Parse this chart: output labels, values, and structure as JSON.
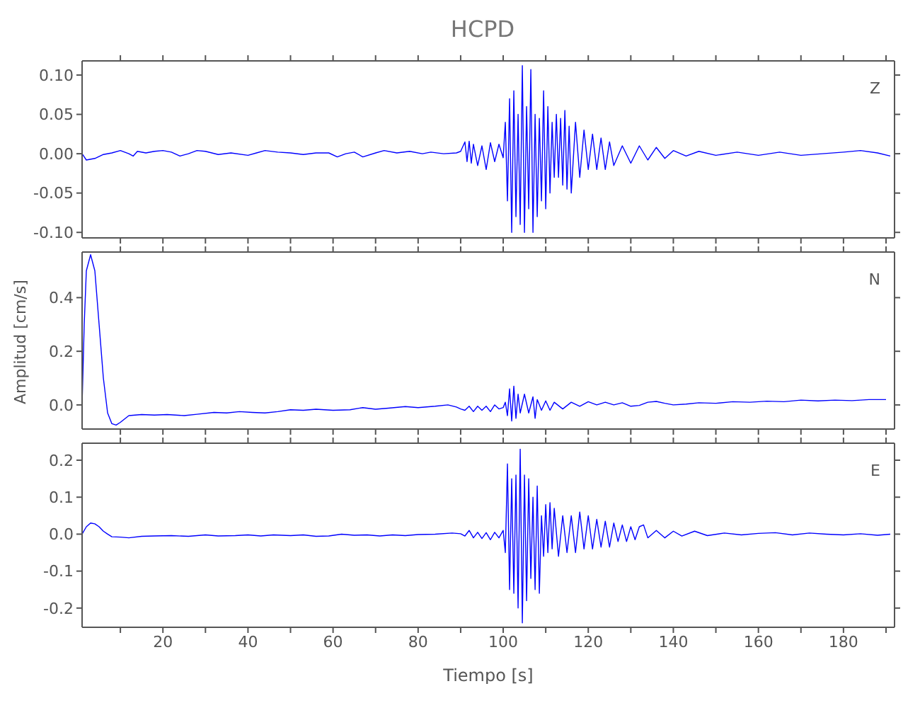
{
  "chart_data": [
    {
      "type": "line",
      "title": "HCPD",
      "annotations": [
        "Z"
      ],
      "color": "#0000ff",
      "tick_labels": "y",
      "xlim": [
        1,
        192
      ],
      "xticks": [
        {
          "value": 10,
          "label": null
        },
        {
          "value": 20,
          "label": null
        },
        {
          "value": 30,
          "label": null
        },
        {
          "value": 40,
          "label": null
        },
        {
          "value": 50,
          "label": null
        },
        {
          "value": 60,
          "label": null
        },
        {
          "value": 70,
          "label": null
        },
        {
          "value": 80,
          "label": null
        },
        {
          "value": 90,
          "label": null
        },
        {
          "value": 100,
          "label": null
        },
        {
          "value": 110,
          "label": null
        },
        {
          "value": 120,
          "label": null
        },
        {
          "value": 130,
          "label": null
        },
        {
          "value": 140,
          "label": null
        },
        {
          "value": 150,
          "label": null
        },
        {
          "value": 160,
          "label": null
        },
        {
          "value": 170,
          "label": null
        },
        {
          "value": 180,
          "label": null
        },
        {
          "value": 190,
          "label": null
        }
      ],
      "ylim": [
        -0.107,
        0.118
      ],
      "yticks": [
        {
          "value": -0.1,
          "label": "-0.10"
        },
        {
          "value": -0.05,
          "label": "-0.05"
        },
        {
          "value": 0,
          "label": "0.00"
        },
        {
          "value": 0.05,
          "label": "0.05"
        },
        {
          "value": 0.1,
          "label": "0.10"
        }
      ],
      "x": [
        1,
        2,
        4,
        6,
        8,
        10,
        12,
        13,
        14,
        16,
        18,
        20,
        22,
        24,
        26,
        28,
        30,
        33,
        36,
        40,
        42,
        44,
        47,
        50,
        53,
        56,
        59,
        61,
        63,
        65,
        67,
        70,
        72,
        75,
        78,
        81,
        83,
        86,
        89,
        90,
        91,
        91.5,
        92,
        92.5,
        93,
        94,
        95,
        96,
        97,
        98,
        99,
        100,
        100.5,
        101,
        101.5,
        102,
        102.5,
        103,
        103.5,
        104,
        104.5,
        105,
        105.5,
        106,
        106.5,
        107,
        107.5,
        108,
        108.5,
        109,
        109.5,
        110,
        110.5,
        111,
        111.5,
        112,
        112.5,
        113,
        113.5,
        114,
        114.5,
        115,
        115.5,
        116,
        117,
        118,
        119,
        120,
        121,
        122,
        123,
        124,
        125,
        126,
        128,
        130,
        132,
        134,
        136,
        138,
        140,
        143,
        146,
        150,
        155,
        160,
        165,
        170,
        175,
        180,
        184,
        188,
        191
      ],
      "values": [
        0,
        -0.008,
        -0.006,
        -0.001,
        0.001,
        0.004,
        0,
        -0.003,
        0.003,
        0.001,
        0.003,
        0.004,
        0.002,
        -0.003,
        0,
        0.004,
        0.003,
        -0.001,
        0.001,
        -0.002,
        0.001,
        0.004,
        0.002,
        0.001,
        -0.001,
        0.001,
        0.001,
        -0.004,
        0,
        0.002,
        -0.004,
        0.001,
        0.004,
        0.001,
        0.003,
        0,
        0.002,
        0,
        0.001,
        0.003,
        0.015,
        -0.01,
        0.016,
        -0.012,
        0.012,
        -0.015,
        0.01,
        -0.02,
        0.014,
        -0.01,
        0.012,
        -0.005,
        0.04,
        -0.06,
        0.07,
        -0.1,
        0.08,
        -0.08,
        0.05,
        -0.09,
        0.112,
        -0.1,
        0.06,
        -0.07,
        0.107,
        -0.1,
        0.05,
        -0.08,
        0.045,
        -0.06,
        0.08,
        -0.07,
        0.06,
        -0.05,
        0.04,
        -0.03,
        0.05,
        -0.03,
        0.045,
        -0.04,
        0.055,
        -0.045,
        0.035,
        -0.05,
        0.04,
        -0.03,
        0.03,
        -0.02,
        0.025,
        -0.02,
        0.02,
        -0.02,
        0.015,
        -0.015,
        0.01,
        -0.012,
        0.01,
        -0.008,
        0.008,
        -0.006,
        0.004,
        -0.003,
        0.003,
        -0.002,
        0.002,
        -0.002,
        0.002,
        -0.002,
        0,
        0.002,
        0.004,
        0.001,
        -0.003
      ]
    },
    {
      "type": "line",
      "ylabel": "Amplitud [cm/s]",
      "annotations": [
        "N"
      ],
      "color": "#0000ff",
      "tick_labels": "y",
      "xlim": [
        1,
        192
      ],
      "xticks": [
        {
          "value": 10,
          "label": null
        },
        {
          "value": 20,
          "label": null
        },
        {
          "value": 30,
          "label": null
        },
        {
          "value": 40,
          "label": null
        },
        {
          "value": 50,
          "label": null
        },
        {
          "value": 60,
          "label": null
        },
        {
          "value": 70,
          "label": null
        },
        {
          "value": 80,
          "label": null
        },
        {
          "value": 90,
          "label": null
        },
        {
          "value": 100,
          "label": null
        },
        {
          "value": 110,
          "label": null
        },
        {
          "value": 120,
          "label": null
        },
        {
          "value": 130,
          "label": null
        },
        {
          "value": 140,
          "label": null
        },
        {
          "value": 150,
          "label": null
        },
        {
          "value": 160,
          "label": null
        },
        {
          "value": 170,
          "label": null
        },
        {
          "value": 180,
          "label": null
        },
        {
          "value": 190,
          "label": null
        }
      ],
      "ylim": [
        -0.09,
        0.57
      ],
      "yticks": [
        {
          "value": 0,
          "label": "0.0"
        },
        {
          "value": 0.2,
          "label": "0.2"
        },
        {
          "value": 0.4,
          "label": "0.4"
        }
      ],
      "x": [
        1,
        1.5,
        2,
        3,
        4,
        5,
        6,
        7,
        8,
        9,
        10,
        12,
        15,
        18,
        21,
        25,
        28,
        32,
        35,
        38,
        41,
        44,
        47,
        50,
        53,
        56,
        60,
        64,
        67,
        70,
        73,
        77,
        80,
        84,
        87,
        89,
        90,
        91,
        92,
        93,
        94,
        95,
        96,
        97,
        98,
        99,
        100,
        100.5,
        101,
        101.5,
        102,
        102.5,
        103,
        103.5,
        104,
        105,
        106,
        107,
        107.5,
        108,
        109,
        110,
        111,
        112,
        114,
        116,
        118,
        120,
        122,
        124,
        126,
        128,
        130,
        132,
        134,
        136,
        138,
        140,
        143,
        146,
        150,
        154,
        158,
        162,
        166,
        170,
        174,
        178,
        182,
        186,
        190
      ],
      "values": [
        0,
        0.3,
        0.5,
        0.56,
        0.5,
        0.3,
        0.1,
        -0.03,
        -0.07,
        -0.075,
        -0.065,
        -0.04,
        -0.036,
        -0.038,
        -0.036,
        -0.04,
        -0.035,
        -0.028,
        -0.03,
        -0.025,
        -0.028,
        -0.03,
        -0.025,
        -0.018,
        -0.02,
        -0.016,
        -0.02,
        -0.018,
        -0.01,
        -0.016,
        -0.012,
        -0.006,
        -0.01,
        -0.005,
        0,
        -0.008,
        -0.015,
        -0.02,
        -0.005,
        -0.025,
        -0.005,
        -0.02,
        -0.005,
        -0.025,
        0,
        -0.015,
        -0.01,
        0.01,
        -0.04,
        0.06,
        -0.06,
        0.07,
        -0.05,
        0.04,
        -0.03,
        0.04,
        -0.03,
        0.03,
        -0.05,
        0.02,
        -0.02,
        0.015,
        -0.02,
        0.01,
        -0.015,
        0.01,
        -0.005,
        0.012,
        0,
        0.01,
        0,
        0.008,
        -0.005,
        -0.002,
        0.01,
        0.013,
        0.006,
        0,
        0.003,
        0.008,
        0.006,
        0.012,
        0.01,
        0.014,
        0.012,
        0.018,
        0.015,
        0.018,
        0.016,
        0.02,
        0.02
      ]
    },
    {
      "type": "line",
      "xlabel": "Tiempo [s]",
      "annotations": [
        "E"
      ],
      "color": "#0000ff",
      "xlim": [
        1,
        192
      ],
      "xticks": [
        {
          "value": 10,
          "label": null
        },
        20,
        {
          "value": 30,
          "label": null
        },
        40,
        {
          "value": 50,
          "label": null
        },
        60,
        {
          "value": 70,
          "label": null
        },
        80,
        {
          "value": 90,
          "label": null
        },
        100,
        {
          "value": 110,
          "label": null
        },
        120,
        {
          "value": 130,
          "label": null
        },
        140,
        {
          "value": 150,
          "label": null
        },
        160,
        {
          "value": 170,
          "label": null
        },
        180,
        {
          "value": 190,
          "label": null
        }
      ],
      "ylim": [
        -0.252,
        0.246
      ],
      "yticks": [
        {
          "value": -0.2,
          "label": "-0.2"
        },
        {
          "value": -0.1,
          "label": "-0.1"
        },
        {
          "value": 0,
          "label": "0.0"
        },
        {
          "value": 0.1,
          "label": "0.1"
        },
        {
          "value": 0.2,
          "label": "0.2"
        }
      ],
      "x": [
        1,
        2,
        3,
        4,
        5,
        6,
        7,
        8,
        10,
        12,
        15,
        18,
        22,
        26,
        30,
        33,
        37,
        40,
        43,
        46,
        50,
        53,
        56,
        59,
        62,
        65,
        68,
        71,
        74,
        77,
        80,
        84,
        88,
        90,
        91,
        92,
        93,
        94,
        95,
        96,
        97,
        98,
        99,
        100,
        100.5,
        101,
        101.5,
        102,
        102.5,
        103,
        103.5,
        104,
        104.5,
        105,
        105.5,
        106,
        106.5,
        107,
        107.5,
        108,
        108.5,
        109,
        109.5,
        110,
        110.5,
        111,
        111.5,
        112,
        113,
        114,
        115,
        116,
        117,
        118,
        119,
        120,
        121,
        122,
        123,
        124,
        125,
        126,
        127,
        128,
        129,
        130,
        131,
        132,
        133,
        134,
        136,
        138,
        140,
        142,
        145,
        148,
        152,
        156,
        160,
        164,
        168,
        172,
        176,
        180,
        184,
        188,
        191
      ],
      "values": [
        0,
        0.02,
        0.03,
        0.028,
        0.02,
        0.008,
        0,
        -0.007,
        -0.008,
        -0.01,
        -0.006,
        -0.005,
        -0.004,
        -0.006,
        -0.002,
        -0.005,
        -0.004,
        -0.002,
        -0.005,
        -0.002,
        -0.004,
        -0.002,
        -0.006,
        -0.005,
        0,
        -0.003,
        -0.002,
        -0.005,
        -0.002,
        -0.004,
        -0.001,
        0,
        0.003,
        0.001,
        -0.005,
        0.01,
        -0.01,
        0.005,
        -0.012,
        0.004,
        -0.015,
        0.005,
        -0.01,
        0.01,
        -0.05,
        0.19,
        -0.15,
        0.15,
        -0.16,
        0.16,
        -0.2,
        0.23,
        -0.24,
        0.16,
        -0.18,
        0.15,
        -0.12,
        0.1,
        -0.15,
        0.13,
        -0.16,
        0.05,
        -0.06,
        0.08,
        -0.05,
        0.085,
        -0.04,
        0.07,
        -0.06,
        0.05,
        -0.05,
        0.05,
        -0.05,
        0.06,
        -0.04,
        0.05,
        -0.04,
        0.04,
        -0.035,
        0.035,
        -0.035,
        0.03,
        -0.02,
        0.025,
        -0.02,
        0.02,
        -0.015,
        0.02,
        0.025,
        -0.01,
        0.01,
        -0.01,
        0.008,
        -0.005,
        0.008,
        -0.004,
        0.003,
        -0.002,
        0.002,
        0.004,
        -0.002,
        0.003,
        0,
        -0.002,
        0.001,
        -0.003,
        0
      ]
    }
  ]
}
